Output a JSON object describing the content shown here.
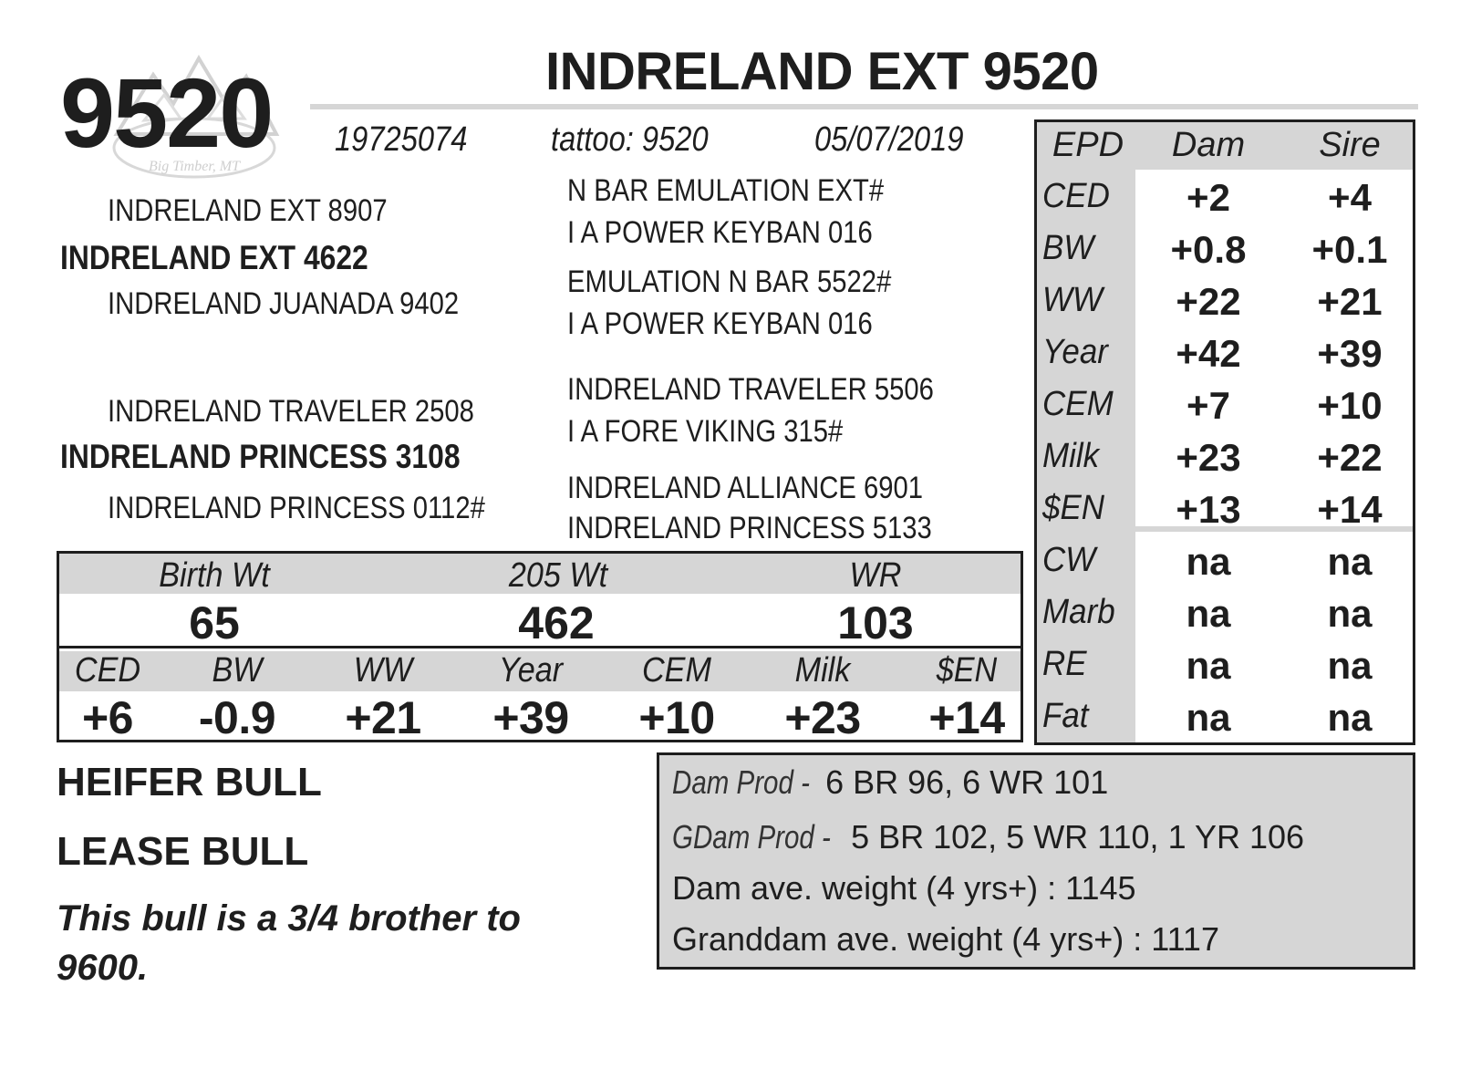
{
  "header": {
    "lot_number": "9520",
    "animal_name": "INDRELAND EXT 9520",
    "registration": "19725074",
    "tattoo": "tattoo: 9520",
    "birth_date": "05/07/2019"
  },
  "logo": {
    "text": "Big Timber, MT"
  },
  "pedigree": {
    "sire_sire": "INDRELAND EXT 8907",
    "sire": "INDRELAND EXT 4622",
    "sire_dam": "INDRELAND JUANADA 9402",
    "dam_sire": "INDRELAND TRAVELER 2508",
    "dam": "INDRELAND PRINCESS 3108",
    "dam_dam": "INDRELAND PRINCESS 0112#",
    "ss_sire": "N BAR EMULATION EXT#",
    "ss_dam": "I A POWER KEYBAN 016",
    "sd_sire": "EMULATION N BAR 5522#",
    "sd_dam": "I A POWER KEYBAN 016",
    "ds_sire": "INDRELAND TRAVELER 5506",
    "ds_dam": "I A FORE VIKING 315#",
    "dd_sire": "INDRELAND ALLIANCE 6901",
    "dd_dam": "INDRELAND PRINCESS 5133"
  },
  "performance": {
    "weights": [
      {
        "label": "Birth Wt",
        "value": "65"
      },
      {
        "label": "205 Wt",
        "value": "462"
      },
      {
        "label": "WR",
        "value": "103"
      }
    ],
    "epds": [
      {
        "label": "CED",
        "value": "+6"
      },
      {
        "label": "BW",
        "value": "-0.9"
      },
      {
        "label": "WW",
        "value": "+21"
      },
      {
        "label": "Year",
        "value": "+39"
      },
      {
        "label": "CEM",
        "value": "+10"
      },
      {
        "label": "Milk",
        "value": "+23"
      },
      {
        "label": "$EN",
        "value": "+14"
      }
    ]
  },
  "epd_table": {
    "headers": [
      "EPD",
      "Dam",
      "Sire"
    ],
    "rows": [
      {
        "label": "CED",
        "dam": "+2",
        "sire": "+4"
      },
      {
        "label": "BW",
        "dam": "+0.8",
        "sire": "+0.1"
      },
      {
        "label": "WW",
        "dam": "+22",
        "sire": "+21"
      },
      {
        "label": "Year",
        "dam": "+42",
        "sire": "+39"
      },
      {
        "label": "CEM",
        "dam": "+7",
        "sire": "+10"
      },
      {
        "label": "Milk",
        "dam": "+23",
        "sire": "+22"
      },
      {
        "label": "$EN",
        "dam": "+13",
        "sire": "+14"
      },
      {
        "label": "CW",
        "dam": "na",
        "sire": "na"
      },
      {
        "label": "Marb",
        "dam": "na",
        "sire": "na"
      },
      {
        "label": "RE",
        "dam": "na",
        "sire": "na"
      },
      {
        "label": "Fat",
        "dam": "na",
        "sire": "na"
      }
    ]
  },
  "production": {
    "dam_prod_label": "Dam Prod -",
    "dam_prod_value": "6 BR 96, 6 WR 101",
    "gdam_prod_label": "GDam Prod -",
    "gdam_prod_value": "5 BR 102, 5 WR 110, 1 YR 106",
    "dam_weight": "Dam ave. weight (4 yrs+) : 1145",
    "granddam_weight": "Granddam ave. weight (4 yrs+) : 1117"
  },
  "notes": {
    "line1": "HEIFER BULL",
    "line2": "LEASE BULL",
    "remark": "This bull is a 3/4 brother to 9600."
  }
}
